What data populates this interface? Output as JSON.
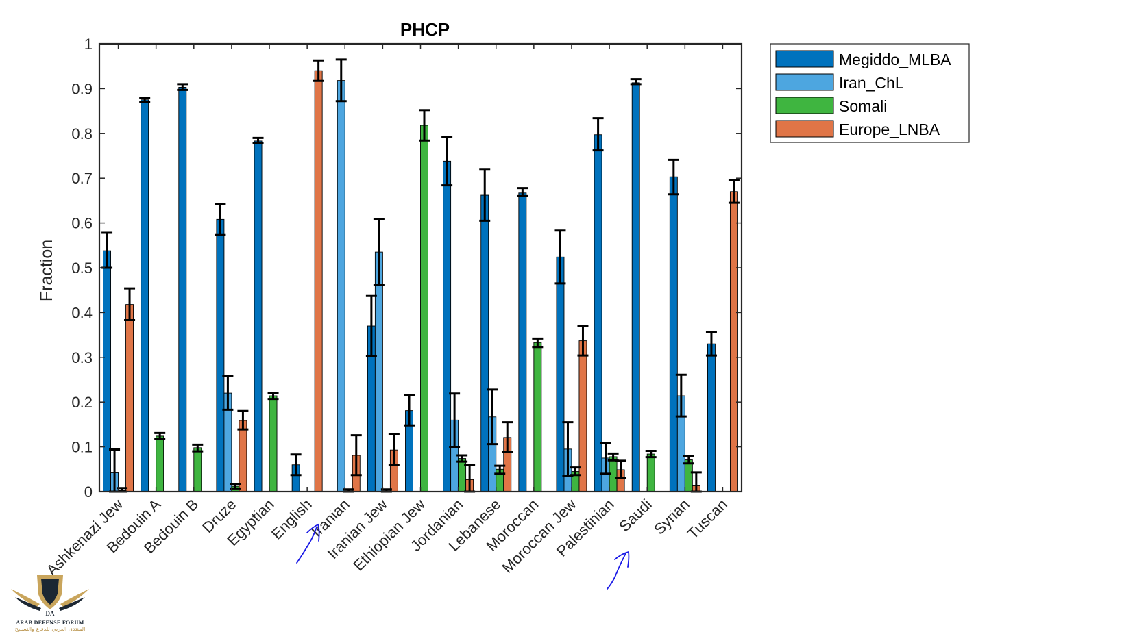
{
  "chart_data": {
    "type": "bar",
    "title": "PHCP",
    "xlabel": "",
    "ylabel": "Fraction",
    "ylim": [
      0,
      1
    ],
    "yticks": [
      "0",
      "0.1",
      "0.2",
      "0.3",
      "0.4",
      "0.5",
      "0.6",
      "0.7",
      "0.8",
      "0.9",
      "1"
    ],
    "grid": false,
    "legend_position": "outside-top-right",
    "categories": [
      "Ashkenazi Jew",
      "Bedouin A",
      "Bedouin B",
      "Druze",
      "Egyptian",
      "English",
      "Iranian",
      "Iranian Jew",
      "Ethiopian Jew",
      "Jordanian",
      "Lebanese",
      "Moroccan",
      "Moroccan Jew",
      "Palestinian",
      "Saudi",
      "Syrian",
      "Tuscan"
    ],
    "series": [
      {
        "name": "Megiddo_MLBA",
        "color": "#0072BD",
        "values": [
          0.538,
          0.875,
          0.903,
          0.608,
          0.783,
          0.06,
          0.0,
          0.37,
          0.181,
          0.738,
          0.662,
          0.667,
          0.524,
          0.797,
          0.913,
          0.703,
          0.33
        ],
        "err_low": [
          0.5,
          0.87,
          0.897,
          0.573,
          0.778,
          0.037,
          0.0,
          0.303,
          0.148,
          0.684,
          0.605,
          0.66,
          0.465,
          0.762,
          0.91,
          0.664,
          0.304
        ],
        "err_high": [
          0.578,
          0.88,
          0.91,
          0.643,
          0.79,
          0.083,
          0.0,
          0.437,
          0.215,
          0.792,
          0.719,
          0.678,
          0.583,
          0.834,
          0.921,
          0.741,
          0.356
        ]
      },
      {
        "name": "Iran_ChL",
        "color": "#4DA6E0",
        "values": [
          0.042,
          0.0,
          0.0,
          0.22,
          0.0,
          0.0,
          0.918,
          0.535,
          0.0,
          0.16,
          0.167,
          0.0,
          0.095,
          0.075,
          0.0,
          0.214,
          0.0
        ],
        "err_low": [
          0.0,
          0.0,
          0.0,
          0.183,
          0.0,
          0.0,
          0.872,
          0.461,
          0.0,
          0.099,
          0.106,
          0.0,
          0.035,
          0.04,
          0.0,
          0.168,
          0.0
        ],
        "err_high": [
          0.094,
          0.0,
          0.0,
          0.258,
          0.0,
          0.0,
          0.965,
          0.609,
          0.0,
          0.219,
          0.228,
          0.0,
          0.155,
          0.109,
          0.0,
          0.261,
          0.0
        ]
      },
      {
        "name": "Somali",
        "color": "#3FB540",
        "values": [
          0.003,
          0.124,
          0.098,
          0.012,
          0.214,
          0.0,
          0.002,
          0.002,
          0.818,
          0.074,
          0.05,
          0.333,
          0.045,
          0.078,
          0.084,
          0.071,
          0.0
        ],
        "err_low": [
          0.0,
          0.118,
          0.09,
          0.007,
          0.207,
          0.0,
          0.0,
          0.0,
          0.784,
          0.067,
          0.04,
          0.323,
          0.037,
          0.07,
          0.077,
          0.063,
          0.0
        ],
        "err_high": [
          0.008,
          0.131,
          0.105,
          0.017,
          0.221,
          0.0,
          0.005,
          0.005,
          0.852,
          0.081,
          0.058,
          0.342,
          0.054,
          0.085,
          0.091,
          0.079,
          0.0
        ]
      },
      {
        "name": "Europe_LNBA",
        "color": "#E07547",
        "values": [
          0.418,
          0.0,
          0.0,
          0.159,
          0.0,
          0.94,
          0.081,
          0.093,
          0.0,
          0.027,
          0.121,
          0.0,
          0.337,
          0.049,
          0.0,
          0.013,
          0.67
        ],
        "err_low": [
          0.383,
          0.0,
          0.0,
          0.139,
          0.0,
          0.917,
          0.037,
          0.059,
          0.0,
          0.0,
          0.088,
          0.0,
          0.304,
          0.03,
          0.0,
          0.0,
          0.645
        ],
        "err_high": [
          0.454,
          0.0,
          0.0,
          0.18,
          0.0,
          0.963,
          0.126,
          0.128,
          0.0,
          0.059,
          0.155,
          0.0,
          0.37,
          0.069,
          0.0,
          0.043,
          0.695
        ]
      }
    ],
    "annotations": [
      {
        "type": "hand-drawn-arrow",
        "color": "#1A1AE6",
        "points_to": "Iranian"
      },
      {
        "type": "hand-drawn-arrow",
        "color": "#1A1AE6",
        "points_to": "Saudi"
      }
    ]
  },
  "watermark": {
    "badge": "DA",
    "line1": "ARAB DEFENSE FORUM",
    "line2": "المنتدى العربي للدفاع والتسليح"
  }
}
